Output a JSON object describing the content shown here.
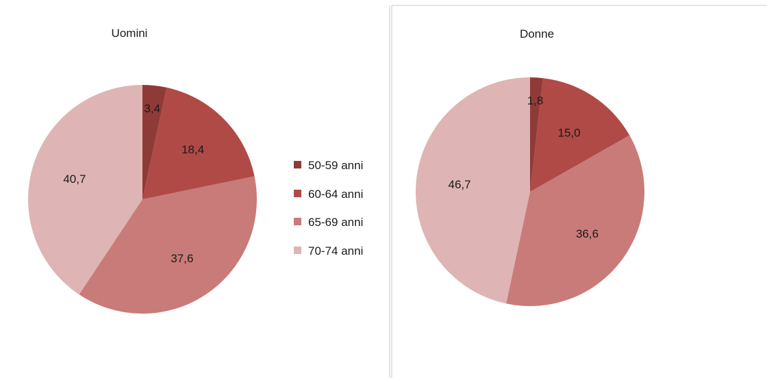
{
  "colors": {
    "50-59 anni": "#8e3b38",
    "60-64 anni": "#b04a46",
    "65-69 anni": "#c97b79",
    "70-74 anni": "#deb5b4",
    "divider": "#c8c8c8"
  },
  "legend": {
    "placement": "between charts, vertically centered",
    "items": [
      "50-59 anni",
      "60-64 anni",
      "65-69 anni",
      "70-74 anni"
    ]
  },
  "chart_data": [
    {
      "type": "pie",
      "title": "Uomini",
      "categories": [
        "50-59 anni",
        "60-64 anni",
        "65-69 anni",
        "70-74 anni"
      ],
      "values": [
        3.4,
        18.4,
        37.6,
        40.7
      ],
      "labels": [
        "3,4",
        "18,4",
        "37,6",
        "40,7"
      ]
    },
    {
      "type": "pie",
      "title": "Donne",
      "categories": [
        "50-59 anni",
        "60-64 anni",
        "65-69 anni",
        "70-74 anni"
      ],
      "values": [
        1.8,
        15.0,
        36.6,
        46.7
      ],
      "labels": [
        "1,8",
        "15,0",
        "36,6",
        "46,7"
      ]
    }
  ]
}
